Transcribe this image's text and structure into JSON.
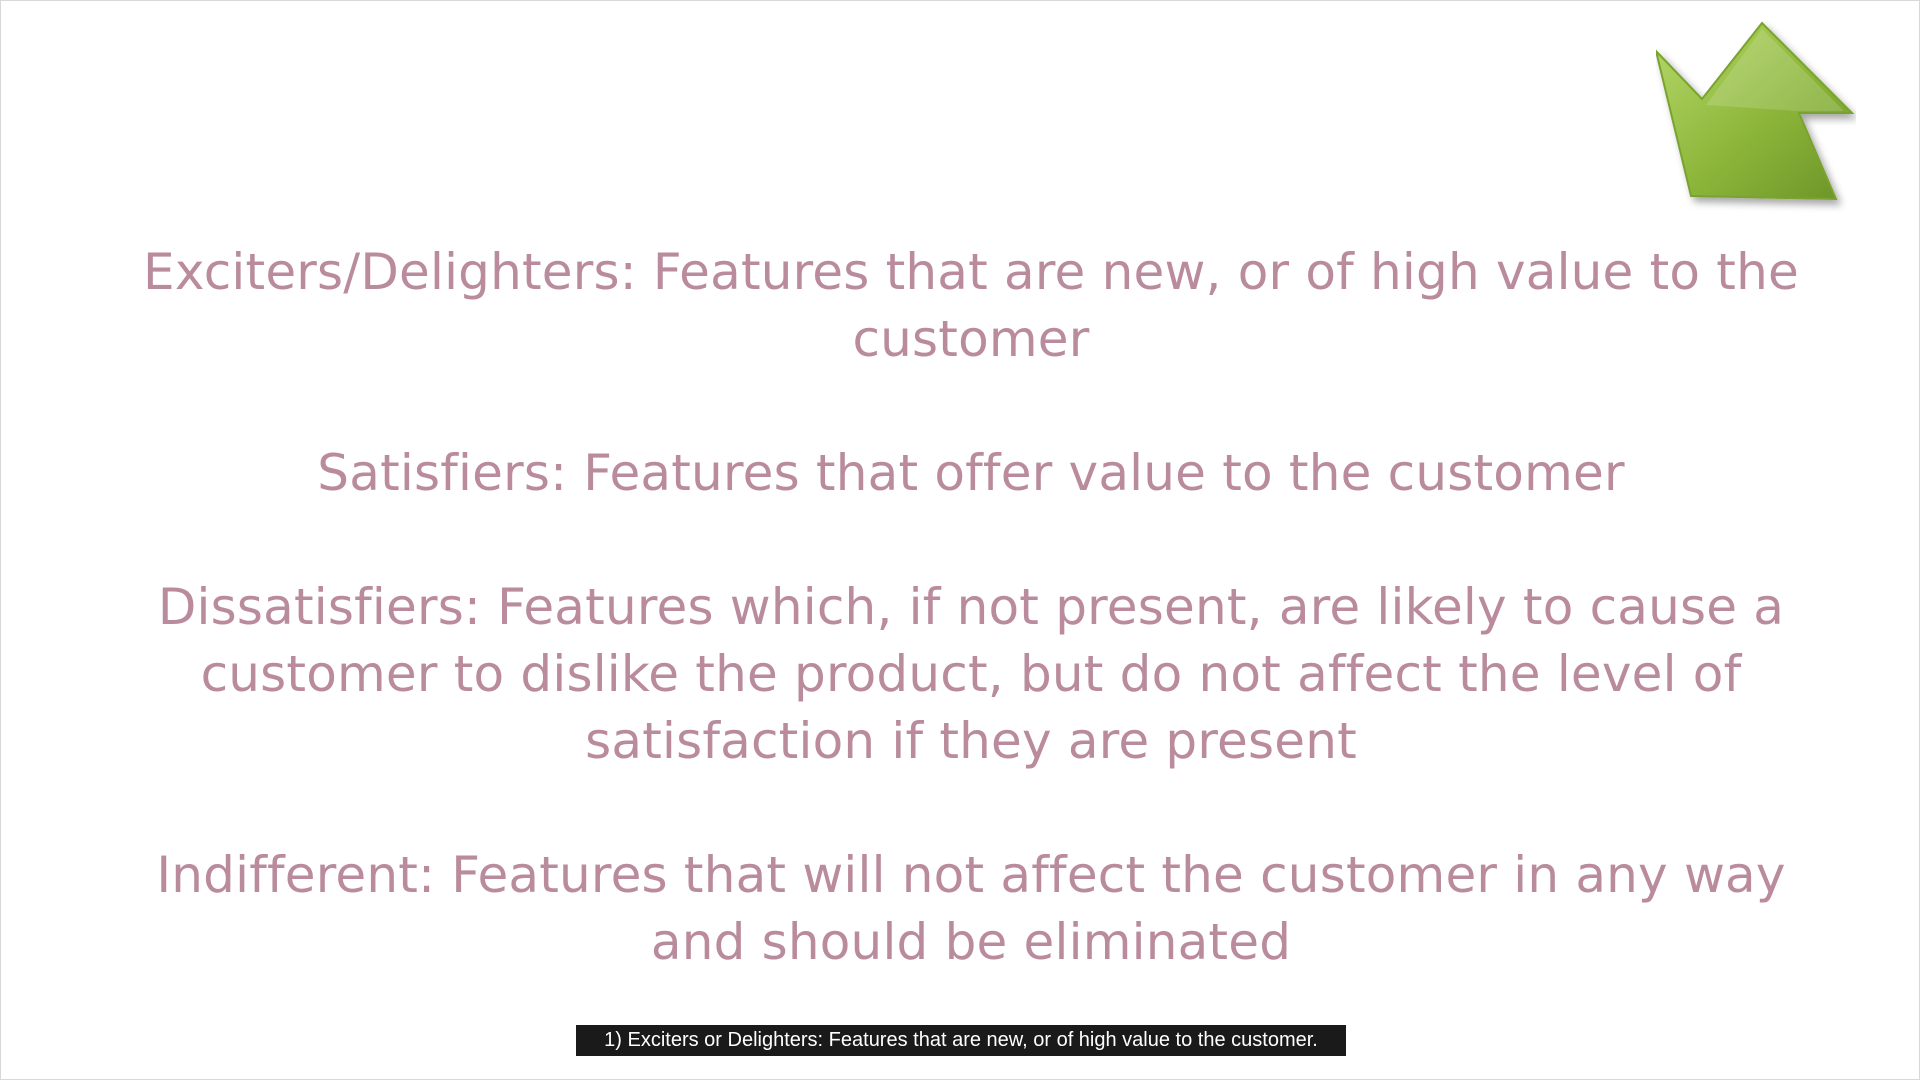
{
  "slide": {
    "items": [
      "Exciters/Delighters: Features that are new, or of high value to the customer",
      "Satisfiers: Features that offer value to the customer",
      "Dissatisfiers: Features which, if not present, are likely to cause a customer to dislike the product, but do not affect the level of satisfaction if they are present",
      "Indifferent: Features that will not affect the customer in any way and should be eliminated"
    ],
    "arrow_icon": "green-arrow-down-left-icon",
    "text_color": "#b98b9c",
    "arrow_color": "#8cb63a"
  },
  "caption": {
    "text": "1) Exciters or Delighters: Features that are new, or of high value to the customer."
  }
}
